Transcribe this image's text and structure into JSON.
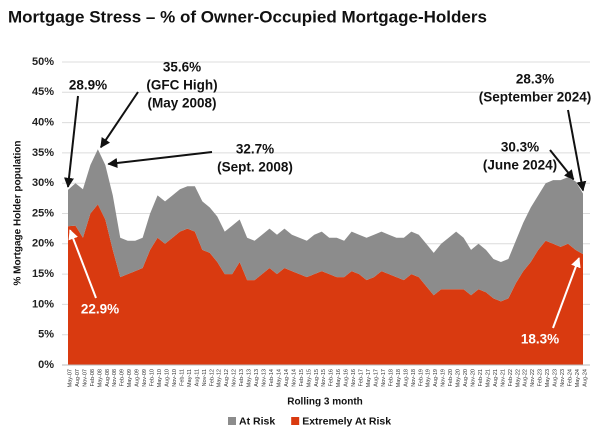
{
  "chart_data": {
    "type": "stacked-area",
    "title": "Mortgage Stress – % of Owner-Occupied Mortgage-Holders",
    "x_label": "Rolling 3 month",
    "y_label": "% Mortgage Holder population",
    "categories": [
      "May-07",
      "Aug-07",
      "Nov-07",
      "Feb-08",
      "May-08",
      "Aug-08",
      "Nov-08",
      "Feb-09",
      "May-09",
      "Aug-09",
      "Nov-09",
      "Feb-10",
      "May-10",
      "Aug-10",
      "Nov-10",
      "Feb-11",
      "May-11",
      "Aug-11",
      "Nov-11",
      "Feb-12",
      "May-12",
      "Aug-12",
      "Nov-12",
      "Feb-13",
      "May-13",
      "Aug-13",
      "Nov-13",
      "Feb-14",
      "May-14",
      "Aug-14",
      "Nov-14",
      "Feb-15",
      "May-15",
      "Aug-15",
      "Nov-15",
      "Feb-16",
      "May-16",
      "Aug-16",
      "Nov-16",
      "Feb-17",
      "May-17",
      "Aug-17",
      "Nov-17",
      "Feb-18",
      "May-18",
      "Aug-18",
      "Nov-18",
      "Feb-19",
      "May-19",
      "Aug-19",
      "Nov-19",
      "Feb-20",
      "May-20",
      "Aug-20",
      "Nov-20",
      "Feb-21",
      "May-21",
      "Aug-21",
      "Nov-21",
      "Feb-22",
      "May-22",
      "Aug-22",
      "Nov-22",
      "Feb-23",
      "May-23",
      "Aug-23",
      "Nov-23",
      "Feb-24",
      "May-24",
      "Aug-24"
    ],
    "series": [
      {
        "name": "Extremely At Risk",
        "color": "#d93a10",
        "values": [
          22.9,
          23,
          21,
          25,
          26.5,
          24,
          19,
          14.5,
          15,
          15.5,
          16,
          19,
          21,
          20,
          21,
          22,
          22.5,
          22,
          19,
          18.5,
          17,
          15,
          15,
          17,
          14,
          14,
          15,
          16,
          15,
          16,
          15.5,
          15,
          14.5,
          15,
          15.5,
          15,
          14.5,
          14.5,
          15.5,
          15,
          14,
          14.5,
          15.5,
          15,
          14.5,
          14,
          15,
          14.5,
          13,
          11.5,
          12.5,
          12.5,
          12.5,
          12.5,
          11.5,
          12.5,
          12,
          11,
          10.5,
          11,
          13.5,
          15.5,
          17,
          19,
          20.5,
          20,
          19.5,
          20,
          19,
          18.3
        ]
      },
      {
        "name": "At Risk",
        "color": "#8c8c8c",
        "values": [
          6.0,
          7.0,
          8.0,
          8.0,
          9.1,
          9.0,
          9.0,
          6.5,
          5.5,
          5.0,
          5.0,
          6.0,
          7.0,
          7.0,
          7.0,
          7.0,
          7.0,
          7.5,
          8.0,
          7.5,
          7.5,
          7.0,
          8.0,
          7.0,
          7.0,
          6.5,
          6.5,
          6.5,
          6.5,
          6.5,
          6.0,
          6.0,
          6.0,
          6.5,
          6.5,
          6.0,
          6.5,
          6.0,
          6.5,
          6.5,
          7.0,
          7.0,
          6.5,
          6.5,
          6.5,
          7.0,
          7.0,
          7.0,
          7.0,
          7.0,
          7.5,
          8.5,
          9.5,
          8.5,
          7.5,
          7.5,
          7.0,
          6.5,
          6.5,
          6.5,
          7.0,
          8.0,
          9.0,
          9.0,
          9.5,
          10.5,
          11.0,
          11.0,
          11.3,
          10.0
        ]
      }
    ],
    "legend_order": [
      1,
      0
    ],
    "ylim": [
      0,
      50
    ],
    "yticks": [
      {
        "value": 0,
        "label": "0%"
      },
      {
        "value": 5,
        "label": "5%"
      },
      {
        "value": 10,
        "label": "10%"
      },
      {
        "value": 15,
        "label": "15%"
      },
      {
        "value": 20,
        "label": "20%"
      },
      {
        "value": 25,
        "label": "25%"
      },
      {
        "value": 30,
        "label": "30%"
      },
      {
        "value": 35,
        "label": "35%"
      },
      {
        "value": 40,
        "label": "40%"
      },
      {
        "value": 45,
        "label": "45%"
      },
      {
        "value": 50,
        "label": "50%"
      }
    ],
    "grid": true,
    "annotations": [
      {
        "lines": [
          "28.9%"
        ]
      },
      {
        "lines": [
          "35.6%",
          "(GFC High)",
          "(May 2008)"
        ]
      },
      {
        "lines": [
          "32.7%",
          "(Sept. 2008)"
        ]
      },
      {
        "lines": [
          "28.3%",
          "(September 2024)"
        ]
      },
      {
        "lines": [
          "30.3%",
          "(June 2024)"
        ]
      },
      {
        "lines": [
          "22.9%"
        ]
      },
      {
        "lines": [
          "18.3%"
        ]
      }
    ]
  }
}
